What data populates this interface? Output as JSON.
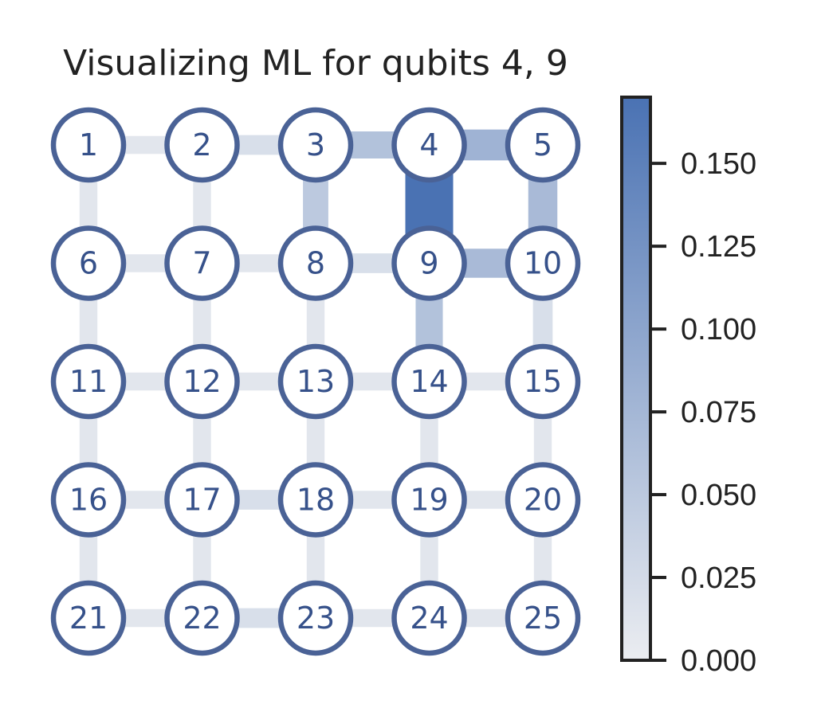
{
  "chart_data": {
    "type": "heatmap",
    "title": "Visualizing ML for qubits 4, 9",
    "grid": {
      "rows": 5,
      "cols": 5
    },
    "nodes": [
      "1",
      "2",
      "3",
      "4",
      "5",
      "6",
      "7",
      "8",
      "9",
      "10",
      "11",
      "12",
      "13",
      "14",
      "15",
      "16",
      "17",
      "18",
      "19",
      "20",
      "21",
      "22",
      "23",
      "24",
      "25"
    ],
    "edges": [
      {
        "from": 1,
        "to": 2,
        "value": 0.01
      },
      {
        "from": 2,
        "to": 3,
        "value": 0.02
      },
      {
        "from": 3,
        "to": 4,
        "value": 0.06
      },
      {
        "from": 4,
        "to": 5,
        "value": 0.08
      },
      {
        "from": 6,
        "to": 7,
        "value": 0.01
      },
      {
        "from": 7,
        "to": 8,
        "value": 0.01
      },
      {
        "from": 8,
        "to": 9,
        "value": 0.02
      },
      {
        "from": 9,
        "to": 10,
        "value": 0.07
      },
      {
        "from": 11,
        "to": 12,
        "value": 0.01
      },
      {
        "from": 12,
        "to": 13,
        "value": 0.01
      },
      {
        "from": 13,
        "to": 14,
        "value": 0.01
      },
      {
        "from": 14,
        "to": 15,
        "value": 0.01
      },
      {
        "from": 16,
        "to": 17,
        "value": 0.01
      },
      {
        "from": 17,
        "to": 18,
        "value": 0.02
      },
      {
        "from": 18,
        "to": 19,
        "value": 0.01
      },
      {
        "from": 19,
        "to": 20,
        "value": 0.01
      },
      {
        "from": 21,
        "to": 22,
        "value": 0.01
      },
      {
        "from": 22,
        "to": 23,
        "value": 0.02
      },
      {
        "from": 23,
        "to": 24,
        "value": 0.01
      },
      {
        "from": 24,
        "to": 25,
        "value": 0.01
      },
      {
        "from": 1,
        "to": 6,
        "value": 0.01
      },
      {
        "from": 2,
        "to": 7,
        "value": 0.01
      },
      {
        "from": 3,
        "to": 8,
        "value": 0.05
      },
      {
        "from": 4,
        "to": 9,
        "value": 0.17
      },
      {
        "from": 5,
        "to": 10,
        "value": 0.07
      },
      {
        "from": 6,
        "to": 11,
        "value": 0.01
      },
      {
        "from": 7,
        "to": 12,
        "value": 0.01
      },
      {
        "from": 8,
        "to": 13,
        "value": 0.01
      },
      {
        "from": 9,
        "to": 14,
        "value": 0.06
      },
      {
        "from": 10,
        "to": 15,
        "value": 0.02
      },
      {
        "from": 11,
        "to": 16,
        "value": 0.01
      },
      {
        "from": 12,
        "to": 17,
        "value": 0.01
      },
      {
        "from": 13,
        "to": 18,
        "value": 0.01
      },
      {
        "from": 14,
        "to": 19,
        "value": 0.01
      },
      {
        "from": 15,
        "to": 20,
        "value": 0.01
      },
      {
        "from": 16,
        "to": 21,
        "value": 0.01
      },
      {
        "from": 17,
        "to": 22,
        "value": 0.01
      },
      {
        "from": 18,
        "to": 23,
        "value": 0.01
      },
      {
        "from": 19,
        "to": 24,
        "value": 0.01
      },
      {
        "from": 20,
        "to": 25,
        "value": 0.01
      }
    ],
    "colorbar": {
      "vmin": 0.0,
      "vmax": 0.17,
      "ticks": [
        0.0,
        0.025,
        0.05,
        0.075,
        0.1,
        0.125,
        0.15
      ],
      "tick_labels": [
        "0.000",
        "0.025",
        "0.050",
        "0.075",
        "0.100",
        "0.125",
        "0.150"
      ],
      "color_low": "#ebedf1",
      "color_high": "#4a72b3"
    },
    "node_edge_color": "#4a6296",
    "node_label_color": "#36518a"
  }
}
